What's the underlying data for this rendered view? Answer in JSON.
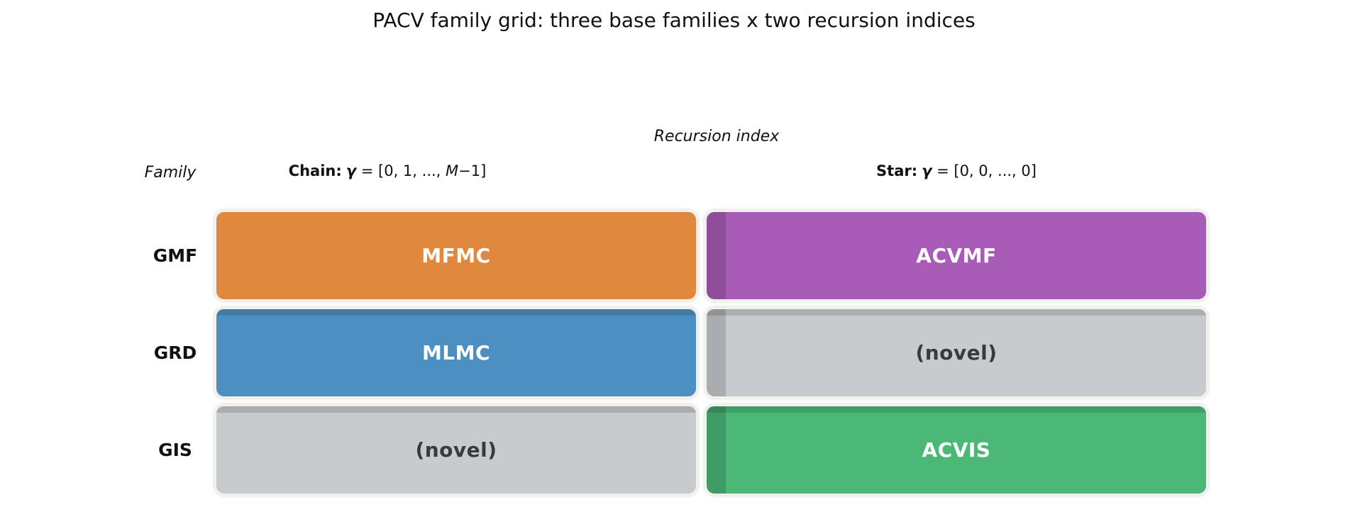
{
  "title": "PACV family grid: three base families x two recursion indices",
  "axes": {
    "recursion_index_label": "Recursion index",
    "family_label": "Family"
  },
  "columns": [
    {
      "key": "chain",
      "prefix": "Chain:",
      "gamma": "γ",
      "eq_pre": " = [0, 1, ..., ",
      "variable": "M",
      "eq_post": "−1]"
    },
    {
      "key": "star",
      "prefix": "Star:",
      "gamma": "γ",
      "eq_pre": " = [0, 0, ..., 0]",
      "variable": "",
      "eq_post": ""
    }
  ],
  "row_labels": [
    "GMF",
    "GRD",
    "GIS"
  ],
  "cells": [
    {
      "row": "GMF",
      "column": "chain",
      "label": "MFMC",
      "fill": "#E0883D",
      "text_color": "#FFFFFF"
    },
    {
      "row": "GMF",
      "column": "star",
      "label": "ACVMF",
      "fill": "#A85CB8",
      "text_color": "#FFFFFF"
    },
    {
      "row": "GRD",
      "column": "chain",
      "label": "MLMC",
      "fill": "#4C90C3",
      "text_color": "#FFFFFF"
    },
    {
      "row": "GRD",
      "column": "star",
      "label": "(novel)",
      "fill": "#C8CBCE",
      "text_color": "#3A3A3A"
    },
    {
      "row": "GIS",
      "column": "chain",
      "label": "(novel)",
      "fill": "#C8CBCE",
      "text_color": "#3A3A3A"
    },
    {
      "row": "GIS",
      "column": "star",
      "label": "ACVIS",
      "fill": "#4BB878",
      "text_color": "#FFFFFF"
    }
  ],
  "colors": {
    "background": "#FFFFFF",
    "cell_border": "#F3F1EB",
    "orange": "#E0883D",
    "purple": "#A85CB8",
    "blue": "#4C90C3",
    "gray": "#C8CBCE",
    "green": "#4BB878",
    "text_dark": "#111111"
  }
}
